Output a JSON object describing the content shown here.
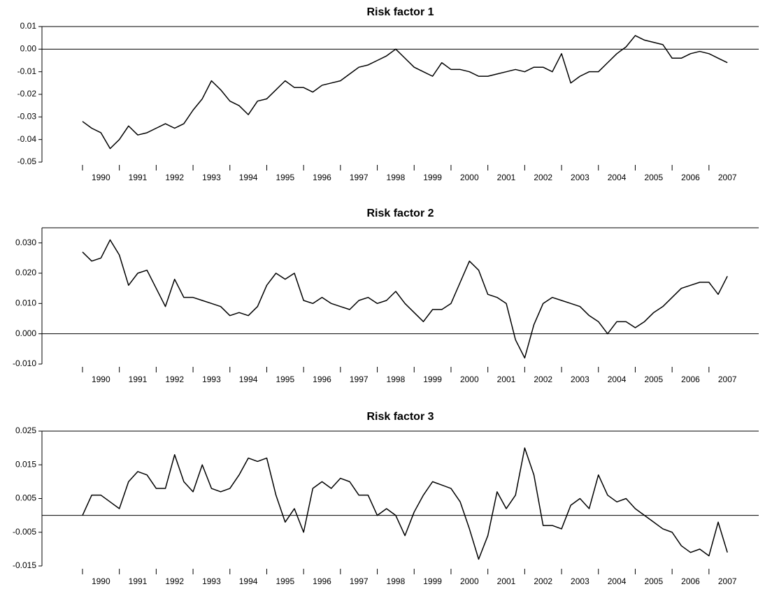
{
  "chart_data": [
    {
      "type": "line",
      "title": "Risk factor 1",
      "x": [
        1990,
        1990.25,
        1990.5,
        1990.75,
        1991,
        1991.25,
        1991.5,
        1991.75,
        1992,
        1992.25,
        1992.5,
        1992.75,
        1993,
        1993.25,
        1993.5,
        1993.75,
        1994,
        1994.25,
        1994.5,
        1994.75,
        1995,
        1995.25,
        1995.5,
        1995.75,
        1996,
        1996.25,
        1996.5,
        1996.75,
        1997,
        1997.25,
        1997.5,
        1997.75,
        1998,
        1998.25,
        1998.5,
        1998.75,
        1999,
        1999.25,
        1999.5,
        1999.75,
        2000,
        2000.25,
        2000.5,
        2000.75,
        2001,
        2001.25,
        2001.5,
        2001.75,
        2002,
        2002.25,
        2002.5,
        2002.75,
        2003,
        2003.25,
        2003.5,
        2003.75,
        2004,
        2004.25,
        2004.5,
        2004.75,
        2005,
        2005.25,
        2005.5,
        2005.75,
        2006,
        2006.25,
        2006.5,
        2006.75,
        2007,
        2007.25,
        2007.5
      ],
      "series": [
        {
          "color": "#000000",
          "values": [
            -0.032,
            -0.035,
            -0.037,
            -0.044,
            -0.04,
            -0.034,
            -0.038,
            -0.037,
            -0.035,
            -0.033,
            -0.035,
            -0.033,
            -0.027,
            -0.022,
            -0.014,
            -0.018,
            -0.023,
            -0.025,
            -0.029,
            -0.023,
            -0.022,
            -0.018,
            -0.014,
            -0.017,
            -0.017,
            -0.019,
            -0.016,
            -0.015,
            -0.014,
            -0.011,
            -0.008,
            -0.007,
            -0.005,
            -0.003,
            0.0,
            -0.004,
            -0.008,
            -0.01,
            -0.012,
            -0.006,
            -0.009,
            -0.009,
            -0.01,
            -0.012,
            -0.012,
            -0.011,
            -0.01,
            -0.009,
            -0.01,
            -0.008,
            -0.008,
            -0.01,
            -0.002,
            -0.015,
            -0.012,
            -0.01,
            -0.01,
            -0.006,
            -0.002,
            0.001,
            0.006,
            0.004,
            0.003,
            0.002,
            -0.004,
            -0.004,
            -0.002,
            -0.001,
            -0.002,
            -0.004,
            -0.006
          ]
        }
      ],
      "xlim": [
        1988.9,
        2008.35
      ],
      "xticks": [
        1990,
        1991,
        1992,
        1993,
        1994,
        1995,
        1996,
        1997,
        1998,
        1999,
        2000,
        2001,
        2002,
        2003,
        2004,
        2005,
        2006,
        2007
      ],
      "ylim": [
        -0.05,
        0.01
      ],
      "yticks": [
        -0.05,
        -0.04,
        -0.03,
        -0.02,
        -0.01,
        {
          "value": 0,
          "label": "0.00"
        },
        0.01
      ],
      "zero_line": true
    },
    {
      "type": "line",
      "title": "Risk factor 2",
      "x": [
        1990,
        1990.25,
        1990.5,
        1990.75,
        1991,
        1991.25,
        1991.5,
        1991.75,
        1992,
        1992.25,
        1992.5,
        1992.75,
        1993,
        1993.25,
        1993.5,
        1993.75,
        1994,
        1994.25,
        1994.5,
        1994.75,
        1995,
        1995.25,
        1995.5,
        1995.75,
        1996,
        1996.25,
        1996.5,
        1996.75,
        1997,
        1997.25,
        1997.5,
        1997.75,
        1998,
        1998.25,
        1998.5,
        1998.75,
        1999,
        1999.25,
        1999.5,
        1999.75,
        2000,
        2000.25,
        2000.5,
        2000.75,
        2001,
        2001.25,
        2001.5,
        2001.75,
        2002,
        2002.25,
        2002.5,
        2002.75,
        2003,
        2003.25,
        2003.5,
        2003.75,
        2004,
        2004.25,
        2004.5,
        2004.75,
        2005,
        2005.25,
        2005.5,
        2005.75,
        2006,
        2006.25,
        2006.5,
        2006.75,
        2007,
        2007.25,
        2007.5
      ],
      "series": [
        {
          "color": "#000000",
          "values": [
            0.027,
            0.024,
            0.025,
            0.031,
            0.026,
            0.016,
            0.02,
            0.021,
            0.015,
            0.009,
            0.018,
            0.012,
            0.012,
            0.011,
            0.01,
            0.009,
            0.006,
            0.007,
            0.006,
            0.009,
            0.016,
            0.02,
            0.018,
            0.02,
            0.011,
            0.01,
            0.012,
            0.01,
            0.009,
            0.008,
            0.011,
            0.012,
            0.01,
            0.011,
            0.014,
            0.01,
            0.007,
            0.004,
            0.008,
            0.008,
            0.01,
            0.017,
            0.024,
            0.021,
            0.013,
            0.012,
            0.01,
            -0.002,
            -0.008,
            0.003,
            0.01,
            0.012,
            0.011,
            0.01,
            0.009,
            0.006,
            0.004,
            0.0,
            0.004,
            0.004,
            0.002,
            0.004,
            0.007,
            0.009,
            0.012,
            0.015,
            0.016,
            0.017,
            0.017,
            0.013,
            0.019
          ]
        }
      ],
      "xlim": [
        1988.9,
        2008.35
      ],
      "xticks": [
        1990,
        1991,
        1992,
        1993,
        1994,
        1995,
        1996,
        1997,
        1998,
        1999,
        2000,
        2001,
        2002,
        2003,
        2004,
        2005,
        2006,
        2007
      ],
      "ylim": [
        -0.01,
        0.035
      ],
      "yticks": [
        {
          "value": -0.01,
          "label": "-0.010"
        },
        {
          "value": 0,
          "label": "0.000"
        },
        {
          "value": 0.01,
          "label": "0.010"
        },
        {
          "value": 0.02,
          "label": "0.020"
        },
        {
          "value": 0.03,
          "label": "0.030"
        }
      ],
      "zero_line": true
    },
    {
      "type": "line",
      "title": "Risk factor 3",
      "x": [
        1990,
        1990.25,
        1990.5,
        1990.75,
        1991,
        1991.25,
        1991.5,
        1991.75,
        1992,
        1992.25,
        1992.5,
        1992.75,
        1993,
        1993.25,
        1993.5,
        1993.75,
        1994,
        1994.25,
        1994.5,
        1994.75,
        1995,
        1995.25,
        1995.5,
        1995.75,
        1996,
        1996.25,
        1996.5,
        1996.75,
        1997,
        1997.25,
        1997.5,
        1997.75,
        1998,
        1998.25,
        1998.5,
        1998.75,
        1999,
        1999.25,
        1999.5,
        1999.75,
        2000,
        2000.25,
        2000.5,
        2000.75,
        2001,
        2001.25,
        2001.5,
        2001.75,
        2002,
        2002.25,
        2002.5,
        2002.75,
        2003,
        2003.25,
        2003.5,
        2003.75,
        2004,
        2004.25,
        2004.5,
        2004.75,
        2005,
        2005.25,
        2005.5,
        2005.75,
        2006,
        2006.25,
        2006.5,
        2006.75,
        2007,
        2007.25,
        2007.5
      ],
      "series": [
        {
          "color": "#000000",
          "values": [
            0.0,
            0.006,
            0.006,
            0.004,
            0.002,
            0.01,
            0.013,
            0.012,
            0.008,
            0.008,
            0.018,
            0.01,
            0.007,
            0.015,
            0.008,
            0.007,
            0.008,
            0.012,
            0.017,
            0.016,
            0.017,
            0.006,
            -0.002,
            0.002,
            -0.005,
            0.008,
            0.01,
            0.008,
            0.011,
            0.01,
            0.006,
            0.006,
            0.0,
            0.002,
            0.0,
            -0.006,
            0.001,
            0.006,
            0.01,
            0.009,
            0.008,
            0.004,
            -0.004,
            -0.013,
            -0.006,
            0.007,
            0.002,
            0.006,
            0.02,
            0.012,
            -0.003,
            -0.003,
            -0.004,
            0.003,
            0.005,
            0.002,
            0.012,
            0.006,
            0.004,
            0.005,
            0.002,
            0.0,
            -0.002,
            -0.004,
            -0.005,
            -0.009,
            -0.011,
            -0.01,
            -0.012,
            -0.002,
            -0.011
          ]
        }
      ],
      "xlim": [
        1988.9,
        2008.35
      ],
      "xticks": [
        1990,
        1991,
        1992,
        1993,
        1994,
        1995,
        1996,
        1997,
        1998,
        1999,
        2000,
        2001,
        2002,
        2003,
        2004,
        2005,
        2006,
        2007
      ],
      "ylim": [
        -0.015,
        0.025
      ],
      "yticks": [
        -0.015,
        -0.005,
        0.005,
        0.015,
        0.025
      ],
      "zero_line": true
    }
  ]
}
